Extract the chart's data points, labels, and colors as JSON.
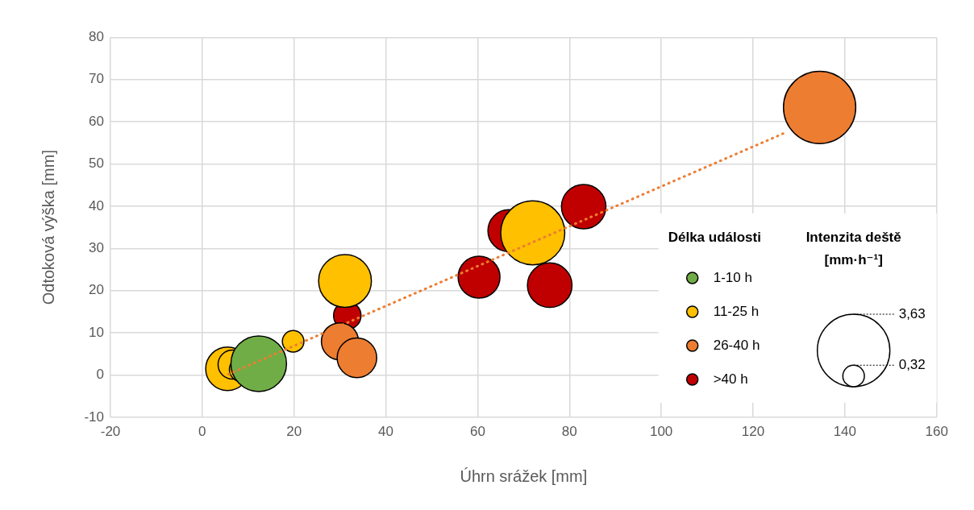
{
  "chart_data": {
    "type": "bubble",
    "xlabel": "Úhrn srážek [mm]",
    "ylabel": "Odtoková výška [mm]",
    "legend_title": "Délka události",
    "annotations": [
      "Intenzita deště [mm·h⁻¹]"
    ],
    "xlim": [
      -20,
      160
    ],
    "xticks": [
      -20,
      0,
      20,
      40,
      60,
      80,
      100,
      120,
      140,
      160
    ],
    "ylim": [
      -10,
      80
    ],
    "yticks": [
      -10,
      0,
      10,
      20,
      30,
      40,
      50,
      60,
      70,
      80
    ],
    "grid": true,
    "legend": "right",
    "size_legend": [
      {
        "value": 0.32,
        "label": "0,32"
      },
      {
        "value": 3.63,
        "label": "3,63"
      }
    ],
    "series": [
      {
        "name": "1-10 h",
        "color": "#70ad47",
        "x": [
          12.3
        ],
        "values": [
          2.7
        ],
        "sizes": [
          2.13
        ]
      },
      {
        "name": "11-25 h",
        "color": "#ffc000",
        "x": [
          5.5,
          6.6,
          8.5,
          19.8,
          31.1,
          72.0
        ],
        "values": [
          1.5,
          2.5,
          1.3,
          8.0,
          22.3,
          33.7
        ],
        "sizes": [
          1.31,
          0.58,
          0.39,
          0.32,
          1.92,
          2.83
        ]
      },
      {
        "name": "26-40 h",
        "color": "#ed7d31",
        "x": [
          30.0,
          33.7,
          134.5
        ],
        "values": [
          8.0,
          4.1,
          63.4
        ],
        "sizes": [
          0.95,
          1.08,
          3.6
        ]
      },
      {
        "name": ">40 h",
        "color": "#c00000",
        "x": [
          31.6,
          60.3,
          66.8,
          75.7,
          83.1
        ],
        "values": [
          14.1,
          23.2,
          34.2,
          21.3,
          39.9
        ],
        "sizes": [
          0.52,
          1.21,
          1.21,
          1.37,
          1.36
        ]
      },
      {
        "type": "line",
        "color": "#ed7d31",
        "line_style": "dotted",
        "x": [
          5.7,
          127.4
        ],
        "values": [
          0.2,
          57.6
        ]
      }
    ]
  }
}
